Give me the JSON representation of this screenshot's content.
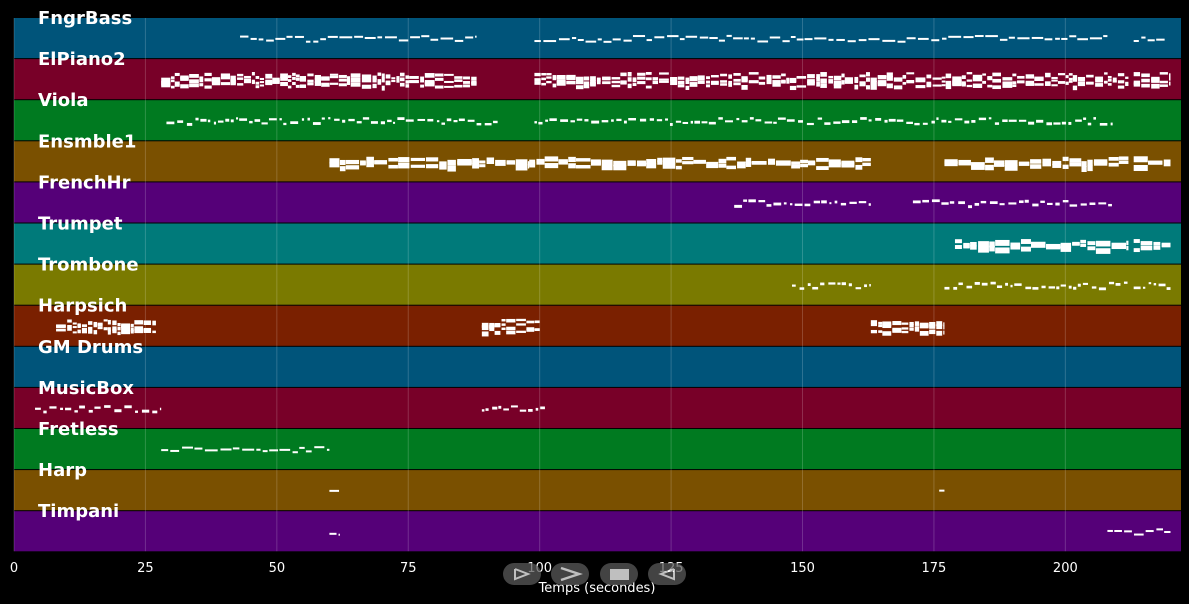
{
  "tracks": [
    {
      "name": "FngrBass",
      "color": "#00547a",
      "notes": [
        [
          43,
          88
        ],
        [
          99,
          208
        ],
        [
          213,
          219
        ]
      ],
      "style": "thin"
    },
    {
      "name": "ElPiano2",
      "color": "#780028",
      "notes": [
        [
          28,
          88
        ],
        [
          99,
          212
        ],
        [
          213,
          220
        ]
      ],
      "style": "dense"
    },
    {
      "name": "Viola",
      "color": "#007a20",
      "notes": [
        [
          29,
          92
        ],
        [
          99,
          209
        ]
      ],
      "style": "dotted"
    },
    {
      "name": "Ensmble1",
      "color": "#7a5000",
      "notes": [
        [
          60,
          98
        ],
        [
          98,
          163
        ],
        [
          177,
          212
        ],
        [
          213,
          220
        ]
      ],
      "style": "block"
    },
    {
      "name": "FrenchHr",
      "color": "#550078",
      "notes": [
        [
          137,
          163
        ],
        [
          171,
          209
        ]
      ],
      "style": "dotted"
    },
    {
      "name": "Trumpet",
      "color": "#007a7a",
      "notes": [
        [
          179,
          212
        ],
        [
          213,
          220
        ]
      ],
      "style": "block"
    },
    {
      "name": "Trombone",
      "color": "#7a7a00",
      "notes": [
        [
          148,
          163
        ],
        [
          177,
          212
        ],
        [
          213,
          220
        ]
      ],
      "style": "dotted"
    },
    {
      "name": "Harpsich",
      "color": "#7a2000",
      "notes": [
        [
          8,
          27
        ],
        [
          89,
          100
        ],
        [
          163,
          177
        ]
      ],
      "style": "dense"
    },
    {
      "name": "GM Drums",
      "color": "#00547a",
      "notes": [],
      "style": "thin"
    },
    {
      "name": "MusicBox",
      "color": "#780028",
      "notes": [
        [
          4,
          28
        ],
        [
          89,
          101
        ]
      ],
      "style": "dotted"
    },
    {
      "name": "Fretless",
      "color": "#007a20",
      "notes": [
        [
          28,
          60
        ]
      ],
      "style": "thin"
    },
    {
      "name": "Harp",
      "color": "#7a5000",
      "notes": [
        [
          60,
          62
        ],
        [
          176,
          177
        ]
      ],
      "style": "thin"
    },
    {
      "name": "Timpani",
      "color": "#550078",
      "notes": [
        [
          60,
          62
        ],
        [
          208,
          220
        ]
      ],
      "style": "thin"
    }
  ],
  "axis": {
    "xlabel": "Temps (secondes)",
    "xmin": 0,
    "xmax": 222,
    "ticks": [
      0,
      25,
      50,
      75,
      100,
      125,
      150,
      175,
      200
    ]
  },
  "controls": {
    "play_icon": "play-icon",
    "forward_icon": "forward-icon",
    "stop_icon": "stop-icon",
    "rewind_icon": "rewind-icon"
  }
}
